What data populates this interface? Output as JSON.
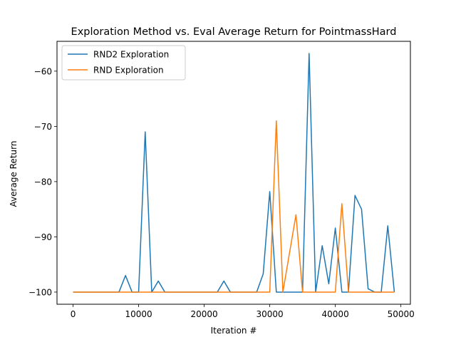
{
  "chart_data": {
    "type": "line",
    "title": "Exploration Method vs. Eval Average Return for PointmassHard",
    "xlabel": "Iteration #",
    "ylabel": "Average Return",
    "xlim": [
      -2450,
      51450
    ],
    "ylim": [
      -102.2,
      -54.6
    ],
    "xticks": [
      0,
      10000,
      20000,
      30000,
      40000,
      50000
    ],
    "yticks": [
      -100,
      -90,
      -80,
      -70,
      -60
    ],
    "xtick_labels": [
      "0",
      "10000",
      "20000",
      "30000",
      "40000",
      "50000"
    ],
    "ytick_labels": [
      "−100",
      "−90",
      "−80",
      "−70",
      "−60"
    ],
    "grid": false,
    "legend_position": "top-left",
    "series": [
      {
        "name": "RND2 Exploration",
        "color": "#1f77b4",
        "x": [
          0,
          1000,
          2000,
          3000,
          4000,
          5000,
          6000,
          7000,
          8000,
          9000,
          10000,
          11000,
          12000,
          13000,
          14000,
          15000,
          16000,
          17000,
          18000,
          19000,
          20000,
          21000,
          22000,
          23000,
          24000,
          25000,
          26000,
          27000,
          28000,
          29000,
          30000,
          31000,
          32000,
          33000,
          34000,
          35000,
          36000,
          37000,
          38000,
          39000,
          40000,
          41000,
          42000,
          43000,
          44000,
          45000,
          46000,
          47000,
          48000,
          49000
        ],
        "y": [
          -100,
          -100,
          -100,
          -100,
          -100,
          -100,
          -100,
          -100,
          -97,
          -100,
          -100,
          -71,
          -100,
          -98,
          -100,
          -100,
          -100,
          -100,
          -100,
          -100,
          -100,
          -100,
          -100,
          -98,
          -100,
          -100,
          -100,
          -100,
          -100,
          -96.7,
          -81.8,
          -100,
          -100,
          -100,
          -100,
          -100,
          -56.8,
          -100,
          -91.6,
          -98.5,
          -88.4,
          -100,
          -100,
          -82.5,
          -85,
          -99.4,
          -100,
          -100,
          -88,
          -100
        ]
      },
      {
        "name": "RND Exploration",
        "color": "#ff7f0e",
        "x": [
          0,
          1000,
          2000,
          3000,
          4000,
          5000,
          6000,
          7000,
          8000,
          9000,
          10000,
          11000,
          12000,
          13000,
          14000,
          15000,
          16000,
          17000,
          18000,
          19000,
          20000,
          21000,
          22000,
          23000,
          24000,
          25000,
          26000,
          27000,
          28000,
          29000,
          30000,
          31000,
          32000,
          33000,
          34000,
          35000,
          36000,
          37000,
          38000,
          39000,
          40000,
          41000,
          42000,
          43000,
          44000,
          45000,
          46000,
          47000,
          48000,
          49000
        ],
        "y": [
          -100,
          -100,
          -100,
          -100,
          -100,
          -100,
          -100,
          -100,
          -100,
          -100,
          -100,
          -100,
          -100,
          -100,
          -100,
          -100,
          -100,
          -100,
          -100,
          -100,
          -100,
          -100,
          -100,
          -100,
          -100,
          -100,
          -100,
          -100,
          -100,
          -100,
          -100,
          -69,
          -100,
          -93,
          -86,
          -100,
          -100,
          -100,
          -100,
          -100,
          -100,
          -84,
          -100,
          -100,
          -100,
          -100,
          -100,
          -100,
          -100,
          -100
        ]
      }
    ]
  }
}
